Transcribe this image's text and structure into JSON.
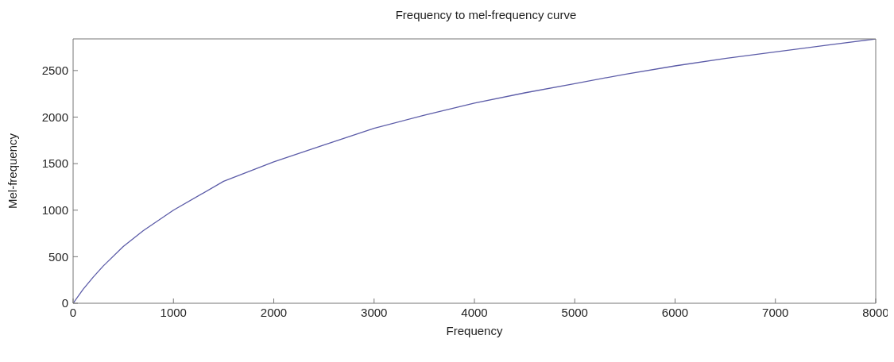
{
  "chart_data": {
    "type": "line",
    "title": "Frequency to mel-frequency curve",
    "xlabel": "Frequency",
    "ylabel": "Mel-frequency",
    "x": [
      0,
      100,
      200,
      300,
      500,
      700,
      1000,
      1500,
      2000,
      2500,
      3000,
      3500,
      4000,
      4500,
      5000,
      5500,
      6000,
      6500,
      7000,
      7500,
      8000
    ],
    "series": [
      {
        "color": "#5c5ca8",
        "values": [
          0,
          150,
          280,
          400,
          610,
          780,
          1000,
          1310,
          1520,
          1700,
          1880,
          2020,
          2150,
          2260,
          2360,
          2460,
          2550,
          2630,
          2700,
          2770,
          2840
        ]
      }
    ],
    "xlim": [
      0,
      8000
    ],
    "xticks": [
      0,
      1000,
      2000,
      3000,
      4000,
      5000,
      6000,
      7000,
      8000
    ],
    "ylim": [
      0,
      2840
    ],
    "yticks": [
      0,
      500,
      1000,
      1500,
      2000,
      2500
    ],
    "grid": false,
    "marker": "none",
    "line_style": "solid"
  }
}
